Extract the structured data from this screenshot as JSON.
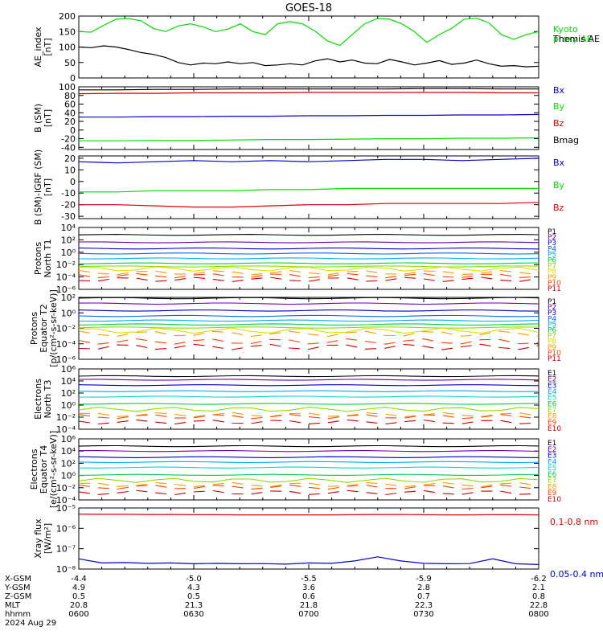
{
  "title": "GOES-18",
  "colors": {
    "black": "#000000",
    "green": "#00dd00",
    "blue": "#0000cc",
    "red": "#dd0000",
    "series12": [
      "#000000",
      "#6a00a8",
      "#0000cc",
      "#0066ff",
      "#00a8ff",
      "#00d4d4",
      "#00cc44",
      "#88dd00",
      "#dddd00",
      "#ff9900",
      "#ff4400",
      "#cc0000"
    ]
  },
  "chart_data": [
    {
      "type": "line",
      "ylabel": "AE_index\n[nT]",
      "ylim": [
        0,
        200
      ],
      "ticks": [
        "0",
        "50",
        "100",
        "150",
        "200"
      ],
      "tick_values": [
        0,
        50,
        100,
        150,
        200
      ],
      "log": false,
      "series": [
        {
          "name": "Kyoto\nproxy AE",
          "color": "#00dd00",
          "values": [
            150,
            148,
            170,
            190,
            192,
            185,
            160,
            150,
            168,
            175,
            165,
            150,
            158,
            175,
            150,
            140,
            175,
            182,
            175,
            152,
            120,
            105,
            140,
            175,
            192,
            190,
            175,
            150,
            115,
            140,
            160,
            190,
            193,
            178,
            140,
            125,
            140,
            150
          ]
        },
        {
          "name": "Themis AE",
          "color": "#000000",
          "values": [
            100,
            98,
            104,
            100,
            92,
            82,
            76,
            66,
            50,
            42,
            48,
            46,
            52,
            46,
            50,
            40,
            42,
            46,
            42,
            55,
            62,
            52,
            58,
            48,
            46,
            60,
            52,
            42,
            48,
            56,
            44,
            48,
            58,
            46,
            38,
            40,
            36,
            38
          ]
        }
      ]
    },
    {
      "type": "line",
      "ylabel": "B (SM)\n[nT]",
      "ylim": [
        -45,
        100
      ],
      "ticks": [
        "-40",
        "-20",
        "0",
        "20",
        "40",
        "60",
        "80",
        "100"
      ],
      "tick_values": [
        -40,
        -20,
        0,
        20,
        40,
        60,
        80,
        100
      ],
      "log": false,
      "series": [
        {
          "name": "Bx",
          "color": "#0000cc",
          "values": [
            30,
            30,
            31,
            31,
            32,
            32,
            33,
            33,
            34,
            34,
            35,
            35,
            36
          ]
        },
        {
          "name": "By",
          "color": "#00dd00",
          "values": [
            -25,
            -25,
            -24,
            -24,
            -23,
            -22,
            -22,
            -21,
            -20,
            -20,
            -19,
            -19,
            -18
          ]
        },
        {
          "name": "Bz",
          "color": "#dd0000",
          "values": [
            84,
            85,
            85,
            86,
            86,
            86,
            87,
            87,
            87,
            87,
            87,
            86,
            86
          ]
        },
        {
          "name": "Bmag",
          "color": "#000000",
          "values": [
            93,
            93,
            94,
            94,
            95,
            95,
            95,
            95,
            95,
            96,
            96,
            95,
            95
          ]
        }
      ]
    },
    {
      "type": "line",
      "ylabel": "B (SM)-IGRF (SM)\n[nT]",
      "ylim": [
        -32,
        22
      ],
      "ticks": [
        "-30",
        "-20",
        "-10",
        "0",
        "10",
        "20"
      ],
      "tick_values": [
        -30,
        -20,
        -10,
        0,
        10,
        20
      ],
      "log": false,
      "series": [
        {
          "name": "Bx",
          "color": "#0000cc",
          "values": [
            17,
            16,
            17,
            18,
            17,
            18,
            17,
            18,
            19,
            19,
            18,
            19,
            20
          ]
        },
        {
          "name": "By",
          "color": "#00dd00",
          "values": [
            -9,
            -9,
            -8,
            -8,
            -8,
            -7,
            -7,
            -6,
            -6,
            -6,
            -6,
            -6,
            -6
          ]
        },
        {
          "name": "Bz",
          "color": "#dd0000",
          "values": [
            -20,
            -20,
            -21,
            -22,
            -22,
            -21,
            -20,
            -20,
            -19,
            -19,
            -19,
            -19,
            -18
          ]
        }
      ]
    },
    {
      "type": "line",
      "ylabel": "Protons\nNorth T1",
      "ylim": [
        -6,
        4
      ],
      "ticks": [
        "10⁻⁶",
        "10⁻⁴",
        "10⁻²",
        "10⁰",
        "10²",
        "10⁴"
      ],
      "tick_values": [
        -6,
        -4,
        -2,
        0,
        2,
        4
      ],
      "log": true,
      "labels": [
        "P1",
        "P2",
        "P3",
        "P4",
        "P5",
        "P6",
        "P7",
        "P8",
        "P9",
        "P10",
        "P11"
      ],
      "levels": [
        2.8,
        1.6,
        0.6,
        -0.2,
        -1.0,
        -1.8,
        -2.3,
        -2.7,
        -3.3,
        -3.8,
        -4.4
      ]
    },
    {
      "type": "line",
      "ylabel": "Protons\nEquator T2\n[p/(cm²-s-sr-keV)]",
      "ylim": [
        -6,
        2
      ],
      "ticks": [
        "10⁻⁶",
        "10⁻⁴",
        "10⁻²",
        "10⁰",
        "10²"
      ],
      "tick_values": [
        -6,
        -4,
        -2,
        0,
        2
      ],
      "log": true,
      "labels": [
        "P1",
        "P2",
        "P3",
        "P4",
        "P5",
        "P6",
        "P7",
        "P8",
        "P9",
        "P10",
        "P11"
      ],
      "levels": [
        1.9,
        1.2,
        0.3,
        -0.4,
        -1.0,
        -1.5,
        -1.9,
        -2.3,
        -2.7,
        -3.7,
        -4.4
      ]
    },
    {
      "type": "line",
      "ylabel": "Electrons\nNorth T3",
      "ylim": [
        -4,
        6
      ],
      "ticks": [
        "10⁻⁴",
        "10⁻²",
        "10⁰",
        "10²",
        "10⁴",
        "10⁶"
      ],
      "tick_values": [
        -4,
        -2,
        0,
        2,
        4,
        6
      ],
      "log": true,
      "labels": [
        "E1",
        "E2",
        "E3",
        "E4",
        "E5",
        "E6",
        "E7",
        "E8",
        "E9",
        "E10"
      ],
      "levels": [
        4.8,
        4.2,
        3.3,
        2.3,
        1.4,
        0.2,
        -0.7,
        -1.6,
        -1.9,
        -2.8
      ]
    },
    {
      "type": "line",
      "ylabel": "Electrons\nEquator T4\n[e/(cm²-s-sr-keV)]",
      "ylim": [
        -4,
        6
      ],
      "ticks": [
        "10⁻⁴",
        "10⁻²",
        "10⁰",
        "10²",
        "10⁴",
        "10⁶"
      ],
      "tick_values": [
        -4,
        -2,
        0,
        2,
        4,
        6
      ],
      "log": true,
      "labels": [
        "E1",
        "E2",
        "E3",
        "E4",
        "E5",
        "E6",
        "E7",
        "E8",
        "E9",
        "E10"
      ],
      "levels": [
        4.8,
        4.0,
        3.0,
        2.2,
        1.3,
        0.1,
        -0.8,
        -1.5,
        -1.9,
        -2.8
      ]
    },
    {
      "type": "line",
      "ylabel": "Xray flux\n[W/m²]",
      "ylim": [
        -8,
        -5
      ],
      "ticks": [
        "10⁻⁸",
        "10⁻⁷",
        "10⁻⁶",
        "10⁻⁵"
      ],
      "tick_values": [
        -8,
        -7,
        -6,
        -5
      ],
      "log": true,
      "series": [
        {
          "name": "0.1-0.8 nm",
          "color": "#dd0000",
          "values": [
            -5.3,
            -5.31,
            -5.31,
            -5.32,
            -5.32,
            -5.33,
            -5.33,
            -5.34,
            -5.34,
            -5.34,
            -5.34,
            -5.34,
            -5.33,
            -5.32,
            -5.32,
            -5.33,
            -5.34,
            -5.34,
            -5.33,
            -5.33,
            -5.34
          ]
        },
        {
          "name": "0.05-0.4 nm",
          "color": "#0000cc",
          "values": [
            -7.5,
            -7.7,
            -7.68,
            -7.72,
            -7.7,
            -7.74,
            -7.72,
            -7.74,
            -7.73,
            -7.76,
            -7.7,
            -7.72,
            -7.6,
            -7.4,
            -7.6,
            -7.72,
            -7.74,
            -7.73,
            -7.5,
            -7.74,
            -7.78
          ]
        }
      ]
    }
  ],
  "x_axis": {
    "row_labels": [
      "X-GSM",
      "Y-GSM",
      "Z-GSM",
      "MLT",
      "hhmm",
      "2024 Aug 29"
    ],
    "columns": [
      [
        "-4.4",
        "4.9",
        "0.5",
        "20.8",
        "0600"
      ],
      [
        "-5.0",
        "4.3",
        "0.5",
        "21.3",
        "0630"
      ],
      [
        "-5.5",
        "3.6",
        "0.6",
        "21.8",
        "0700"
      ],
      [
        "-5.9",
        "2.8",
        "0.7",
        "22.3",
        "0730"
      ],
      [
        "-6.2",
        "2.1",
        "0.8",
        "22.8",
        "0800"
      ]
    ]
  }
}
